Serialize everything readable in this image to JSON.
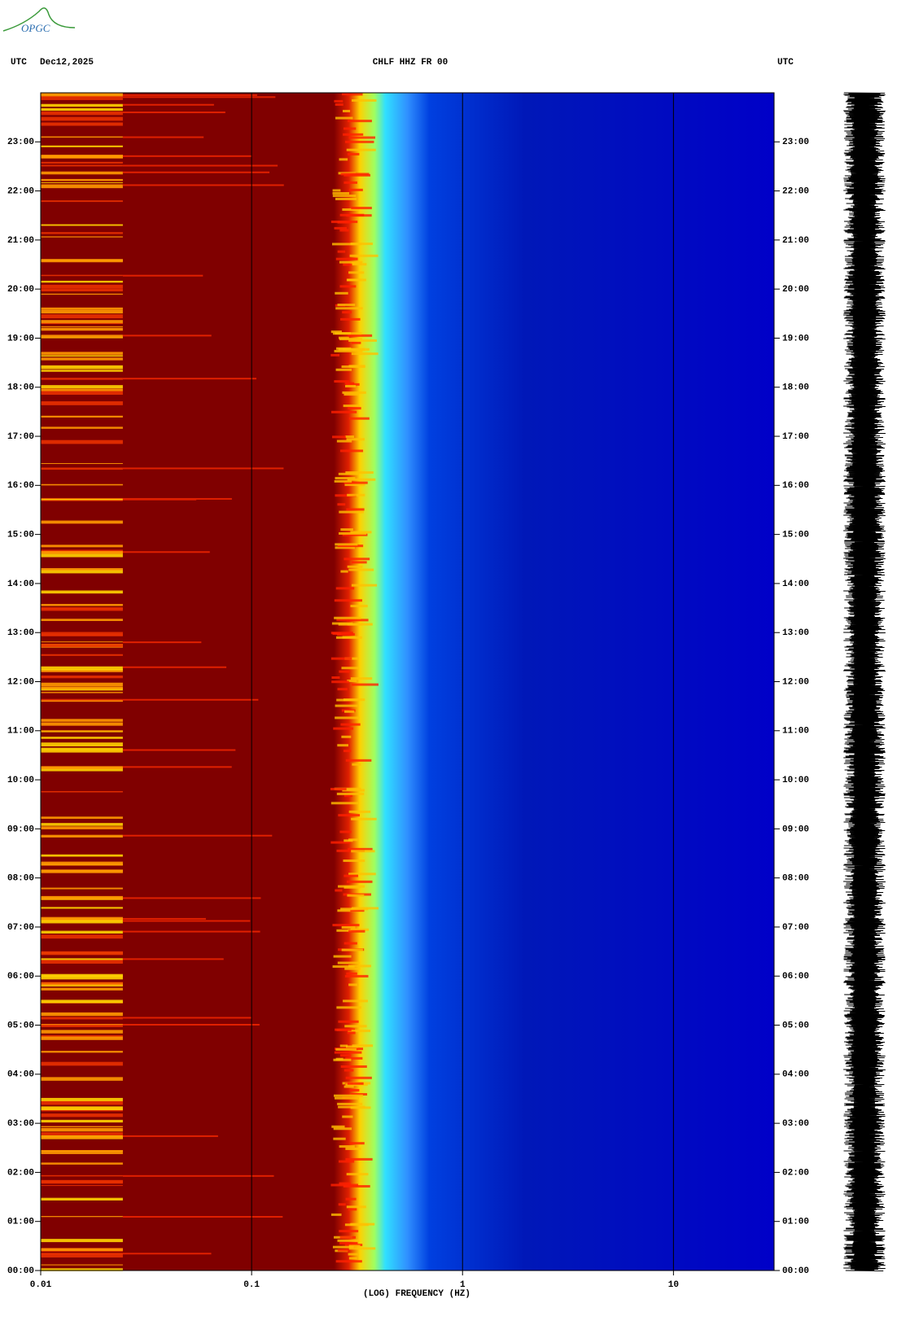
{
  "logo": "OPGC",
  "chart_data": {
    "type": "spectrogram",
    "title": "CHLF HHZ FR 00",
    "left_label": "UTC",
    "date": "Dec12,2025",
    "right_label": "UTC",
    "xlabel": "(LOG) FREQUENCY (HZ)",
    "xscale": "log",
    "xlim": [
      0.01,
      30
    ],
    "xticks": [
      0.01,
      0.1,
      1,
      10
    ],
    "ylim": [
      0,
      24
    ],
    "yticks": [
      {
        "value": 0,
        "label": "00:00"
      },
      {
        "value": 1,
        "label": "01:00"
      },
      {
        "value": 2,
        "label": "02:00"
      },
      {
        "value": 3,
        "label": "03:00"
      },
      {
        "value": 4,
        "label": "04:00"
      },
      {
        "value": 5,
        "label": "05:00"
      },
      {
        "value": 6,
        "label": "06:00"
      },
      {
        "value": 7,
        "label": "07:00"
      },
      {
        "value": 8,
        "label": "08:00"
      },
      {
        "value": 9,
        "label": "09:00"
      },
      {
        "value": 10,
        "label": "10:00"
      },
      {
        "value": 11,
        "label": "11:00"
      },
      {
        "value": 12,
        "label": "12:00"
      },
      {
        "value": 13,
        "label": "13:00"
      },
      {
        "value": 14,
        "label": "14:00"
      },
      {
        "value": 15,
        "label": "15:00"
      },
      {
        "value": 16,
        "label": "16:00"
      },
      {
        "value": 17,
        "label": "17:00"
      },
      {
        "value": 18,
        "label": "18:00"
      },
      {
        "value": 19,
        "label": "19:00"
      },
      {
        "value": 20,
        "label": "20:00"
      },
      {
        "value": 21,
        "label": "21:00"
      },
      {
        "value": 22,
        "label": "22:00"
      },
      {
        "value": 23,
        "label": "23:00"
      }
    ],
    "grid": true
  }
}
